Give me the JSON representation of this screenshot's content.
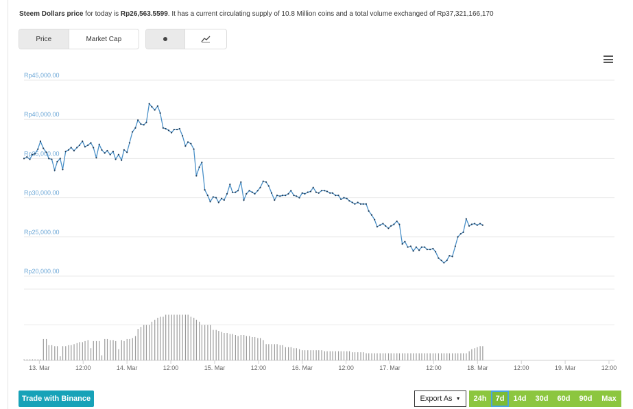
{
  "summary": {
    "name": "Steem Dollars price",
    "text1": " for today is ",
    "price": "Rp26,563.5599",
    "text2": ". It has a current circulating supply of 10.8 Million coins and a total volume exchanged of Rp37,321,166,170"
  },
  "toggles": {
    "price_label": "Price",
    "marketcap_label": "Market Cap",
    "dot_icon": "dot-icon",
    "line_icon": "line-chart-icon"
  },
  "footer": {
    "trade_label": "Trade with Binance",
    "export_label": "Export As",
    "ranges": [
      "24h",
      "7d",
      "14d",
      "30d",
      "60d",
      "90d",
      "Max"
    ],
    "selected_range": "7d"
  },
  "colors": {
    "line": "#4a90c8",
    "bar": "#9a9a9a",
    "axis_label": "#6aa6d6",
    "range_bg": "#8cc63f",
    "trade_bg": "#17a2b8"
  },
  "chart_data": {
    "type": "line",
    "y_ticks": [
      "Rp45,000.00",
      "Rp40,000.00",
      "Rp35,000.00",
      "Rp30,000.00",
      "Rp25,000.00",
      "Rp20,000.00"
    ],
    "y_tick_values": [
      45000,
      40000,
      35000,
      30000,
      25000,
      20000
    ],
    "ylim": [
      20000,
      45000
    ],
    "x_ticks": [
      "13. Mar",
      "12:00",
      "14. Mar",
      "12:00",
      "15. Mar",
      "12:00",
      "16. Mar",
      "12:00",
      "17. Mar",
      "12:00",
      "18. Mar",
      "12:00",
      "19. Mar",
      "12:00"
    ],
    "x_tick_hours": [
      0,
      12,
      24,
      36,
      48,
      60,
      72,
      84,
      96,
      108,
      120,
      132,
      144,
      156
    ],
    "xlim_hours": [
      -4.2,
      157.5
    ],
    "price": [
      [
        -4.2,
        35000
      ],
      [
        -3.4,
        35200
      ],
      [
        -2.6,
        34900
      ],
      [
        -1.9,
        35500
      ],
      [
        -1.2,
        35600
      ],
      [
        -0.4,
        36200
      ],
      [
        0.3,
        37200
      ],
      [
        1.1,
        36300
      ],
      [
        1.9,
        35800
      ],
      [
        2.6,
        35000
      ],
      [
        3.4,
        34900
      ],
      [
        4.2,
        33500
      ],
      [
        4.9,
        34600
      ],
      [
        5.7,
        35000
      ],
      [
        6.4,
        33600
      ],
      [
        7.2,
        35900
      ],
      [
        8.0,
        36100
      ],
      [
        8.7,
        36400
      ],
      [
        9.5,
        36000
      ],
      [
        10.3,
        36400
      ],
      [
        11.0,
        36700
      ],
      [
        11.8,
        37200
      ],
      [
        12.5,
        36500
      ],
      [
        13.3,
        36700
      ],
      [
        14.1,
        37000
      ],
      [
        14.8,
        36400
      ],
      [
        15.6,
        35100
      ],
      [
        16.4,
        36800
      ],
      [
        17.1,
        36100
      ],
      [
        17.9,
        35700
      ],
      [
        18.6,
        36000
      ],
      [
        19.4,
        35500
      ],
      [
        20.2,
        35900
      ],
      [
        20.9,
        34900
      ],
      [
        21.7,
        35500
      ],
      [
        22.5,
        34800
      ],
      [
        23.2,
        36100
      ],
      [
        24.0,
        35800
      ],
      [
        24.7,
        37000
      ],
      [
        25.5,
        38400
      ],
      [
        26.3,
        38900
      ],
      [
        27.0,
        39900
      ],
      [
        27.8,
        39400
      ],
      [
        28.6,
        39300
      ],
      [
        29.3,
        39600
      ],
      [
        30.1,
        42000
      ],
      [
        30.8,
        41600
      ],
      [
        31.6,
        41200
      ],
      [
        32.4,
        41700
      ],
      [
        33.1,
        40800
      ],
      [
        33.9,
        38900
      ],
      [
        34.6,
        38800
      ],
      [
        35.4,
        38600
      ],
      [
        36.2,
        38300
      ],
      [
        36.9,
        38700
      ],
      [
        37.7,
        38700
      ],
      [
        38.4,
        38800
      ],
      [
        39.2,
        37900
      ],
      [
        40.0,
        36600
      ],
      [
        40.7,
        37100
      ],
      [
        41.5,
        36900
      ],
      [
        42.3,
        36200
      ],
      [
        43.0,
        32800
      ],
      [
        43.8,
        33900
      ],
      [
        44.5,
        34500
      ],
      [
        45.3,
        31000
      ],
      [
        46.1,
        30300
      ],
      [
        46.8,
        29500
      ],
      [
        47.6,
        30100
      ],
      [
        48.4,
        30000
      ],
      [
        49.1,
        29400
      ],
      [
        49.9,
        29900
      ],
      [
        50.6,
        29700
      ],
      [
        51.4,
        30500
      ],
      [
        52.2,
        31700
      ],
      [
        52.9,
        30700
      ],
      [
        53.7,
        30700
      ],
      [
        54.4,
        30900
      ],
      [
        55.2,
        32000
      ],
      [
        56.0,
        29700
      ],
      [
        56.7,
        30500
      ],
      [
        57.5,
        30900
      ],
      [
        58.3,
        30700
      ],
      [
        59.0,
        30500
      ],
      [
        59.8,
        30900
      ],
      [
        60.5,
        31300
      ],
      [
        61.3,
        32100
      ],
      [
        62.1,
        32000
      ],
      [
        62.8,
        31500
      ],
      [
        63.6,
        30600
      ],
      [
        64.4,
        29700
      ],
      [
        65.1,
        30300
      ],
      [
        65.9,
        30200
      ],
      [
        66.6,
        30300
      ],
      [
        67.4,
        30300
      ],
      [
        68.2,
        30500
      ],
      [
        68.9,
        30900
      ],
      [
        69.7,
        30300
      ],
      [
        70.4,
        30200
      ],
      [
        71.2,
        30000
      ],
      [
        72.0,
        30600
      ],
      [
        72.7,
        30500
      ],
      [
        73.5,
        30700
      ],
      [
        74.3,
        30800
      ],
      [
        75.0,
        31300
      ],
      [
        75.8,
        30700
      ],
      [
        76.5,
        30600
      ],
      [
        77.3,
        30900
      ],
      [
        78.1,
        30900
      ],
      [
        78.8,
        30800
      ],
      [
        79.6,
        30600
      ],
      [
        80.3,
        30600
      ],
      [
        81.1,
        30300
      ],
      [
        81.9,
        30300
      ],
      [
        82.6,
        29800
      ],
      [
        83.4,
        30000
      ],
      [
        84.2,
        29900
      ],
      [
        84.9,
        29600
      ],
      [
        85.7,
        29400
      ],
      [
        86.4,
        29200
      ],
      [
        87.2,
        29400
      ],
      [
        88.0,
        29200
      ],
      [
        88.7,
        29200
      ],
      [
        89.5,
        29200
      ],
      [
        90.2,
        28300
      ],
      [
        91.0,
        27800
      ],
      [
        91.8,
        27200
      ],
      [
        92.5,
        26300
      ],
      [
        93.3,
        26500
      ],
      [
        94.1,
        26700
      ],
      [
        94.8,
        26400
      ],
      [
        95.6,
        26100
      ],
      [
        96.3,
        26400
      ],
      [
        97.1,
        26600
      ],
      [
        97.9,
        27000
      ],
      [
        98.6,
        26600
      ],
      [
        99.4,
        24100
      ],
      [
        100.1,
        24400
      ],
      [
        100.9,
        23700
      ],
      [
        101.7,
        23800
      ],
      [
        102.4,
        23200
      ],
      [
        103.2,
        23700
      ],
      [
        104.0,
        23300
      ],
      [
        104.7,
        23700
      ],
      [
        105.5,
        23700
      ],
      [
        106.2,
        23400
      ],
      [
        107.0,
        23400
      ],
      [
        107.8,
        23500
      ],
      [
        108.5,
        23100
      ],
      [
        109.3,
        22300
      ],
      [
        110.1,
        22000
      ],
      [
        110.8,
        21700
      ],
      [
        111.6,
        22000
      ],
      [
        112.3,
        22600
      ],
      [
        113.1,
        22500
      ],
      [
        113.9,
        23800
      ],
      [
        114.6,
        25000
      ],
      [
        115.4,
        25400
      ],
      [
        116.1,
        25600
      ],
      [
        116.9,
        27300
      ],
      [
        117.7,
        26400
      ],
      [
        118.4,
        26600
      ],
      [
        119.2,
        26700
      ],
      [
        119.9,
        26500
      ],
      [
        120.7,
        26700
      ],
      [
        121.4,
        26500
      ]
    ],
    "volume_hours": [
      -4.2,
      -3.4,
      -2.6,
      -1.9,
      -1.2,
      -0.4,
      0.3,
      1.1,
      1.9,
      2.6,
      3.4,
      4.2,
      4.9,
      5.7,
      6.4,
      7.2,
      8.0,
      8.7,
      9.5,
      10.3,
      11.0,
      11.8,
      12.5,
      13.3,
      14.1,
      14.8,
      15.6,
      16.4,
      17.1,
      17.9,
      18.6,
      19.4,
      20.2,
      20.9,
      21.7,
      22.5,
      23.2,
      24.0,
      24.7,
      25.5,
      26.3,
      27.0,
      27.8,
      28.6,
      29.3,
      30.1,
      30.8,
      31.6,
      32.4,
      33.1,
      33.9,
      34.6,
      35.4,
      36.2,
      36.9,
      37.7,
      38.4,
      39.2,
      40.0,
      40.7,
      41.5,
      42.3,
      43.0,
      43.8,
      44.5,
      45.3,
      46.1,
      46.8,
      47.6,
      48.4,
      49.1,
      49.9,
      50.6,
      51.4,
      52.2,
      52.9,
      53.7,
      54.4,
      55.2,
      56.0,
      56.7,
      57.5,
      58.3,
      59.0,
      59.8,
      60.5,
      61.3,
      62.1,
      62.8,
      63.6,
      64.4,
      65.1,
      65.9,
      66.6,
      67.4,
      68.2,
      68.9,
      69.7,
      70.4,
      71.2,
      72.0,
      72.7,
      73.5,
      74.3,
      75.0,
      75.8,
      76.5,
      77.3,
      78.1,
      78.8,
      79.6,
      80.3,
      81.1,
      81.9,
      82.6,
      83.4,
      84.2,
      84.9,
      85.7,
      86.4,
      87.2,
      88.0,
      88.7,
      89.5,
      90.2,
      91.0,
      91.8,
      92.5,
      93.3,
      94.1,
      94.8,
      95.6,
      96.3,
      97.1,
      97.9,
      98.6,
      99.4,
      100.1,
      100.9,
      101.7,
      102.4,
      103.2,
      104.0,
      104.7,
      105.5,
      106.2,
      107.0,
      107.8,
      108.5,
      109.3,
      110.1,
      110.8,
      111.6,
      112.3,
      113.1,
      113.9,
      114.6,
      115.4,
      116.1,
      116.9,
      117.7,
      118.4,
      119.2,
      119.9,
      120.7,
      121.4
    ],
    "volume_relative": [
      0.02,
      0.02,
      0.02,
      0.02,
      0.02,
      0.02,
      0.02,
      0.42,
      0.42,
      0.3,
      0.3,
      0.28,
      0.28,
      0.08,
      0.28,
      0.28,
      0.3,
      0.3,
      0.32,
      0.34,
      0.36,
      0.36,
      0.38,
      0.4,
      0.24,
      0.38,
      0.38,
      0.38,
      0.1,
      0.42,
      0.42,
      0.4,
      0.4,
      0.38,
      0.22,
      0.4,
      0.38,
      0.42,
      0.42,
      0.44,
      0.48,
      0.62,
      0.66,
      0.7,
      0.7,
      0.7,
      0.76,
      0.8,
      0.84,
      0.86,
      0.86,
      0.9,
      0.9,
      0.9,
      0.9,
      0.9,
      0.9,
      0.9,
      0.9,
      0.9,
      0.86,
      0.84,
      0.8,
      0.76,
      0.7,
      0.7,
      0.7,
      0.7,
      0.6,
      0.6,
      0.58,
      0.56,
      0.54,
      0.54,
      0.52,
      0.52,
      0.5,
      0.48,
      0.5,
      0.5,
      0.48,
      0.48,
      0.46,
      0.46,
      0.44,
      0.44,
      0.4,
      0.32,
      0.32,
      0.32,
      0.32,
      0.32,
      0.3,
      0.3,
      0.26,
      0.26,
      0.26,
      0.24,
      0.24,
      0.22,
      0.2,
      0.2,
      0.2,
      0.2,
      0.2,
      0.2,
      0.2,
      0.2,
      0.18,
      0.18,
      0.18,
      0.18,
      0.18,
      0.18,
      0.18,
      0.18,
      0.18,
      0.18,
      0.16,
      0.16,
      0.16,
      0.16,
      0.16,
      0.14,
      0.14,
      0.14,
      0.14,
      0.14,
      0.14,
      0.14,
      0.14,
      0.14,
      0.14,
      0.14,
      0.14,
      0.14,
      0.14,
      0.14,
      0.14,
      0.14,
      0.14,
      0.14,
      0.14,
      0.14,
      0.14,
      0.14,
      0.14,
      0.14,
      0.14,
      0.14,
      0.14,
      0.14,
      0.14,
      0.14,
      0.14,
      0.14,
      0.14,
      0.14,
      0.14,
      0.14,
      0.18,
      0.22,
      0.24,
      0.26,
      0.28,
      0.28,
      0.28,
      0.28
    ]
  }
}
